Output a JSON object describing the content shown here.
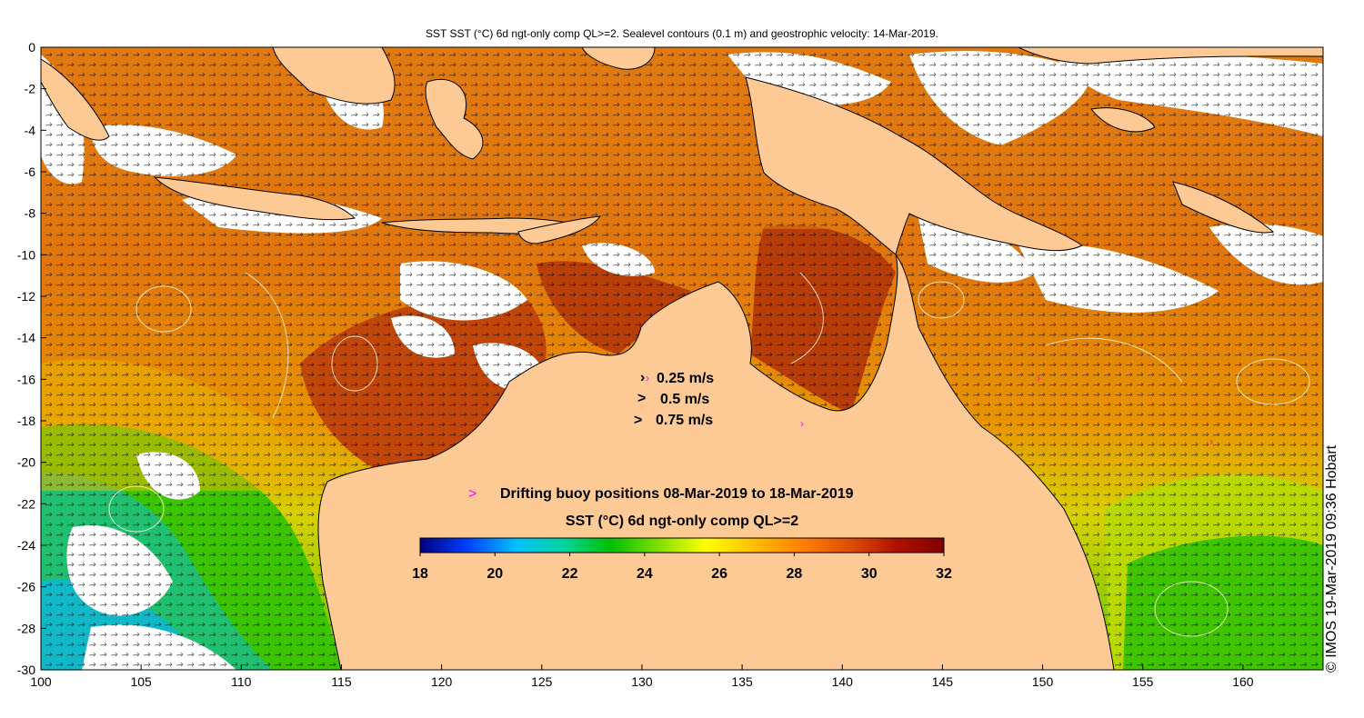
{
  "title": "SST SST (°C) 6d ngt-only comp QL>=2. Sealevel contours (0.1 m) and geostrophic velocity: 14-Mar-2019.",
  "copyright": "© IMOS 19-Mar-2019 09:36 Hobart",
  "axes": {
    "x_ticks": [
      "100",
      "105",
      "110",
      "115",
      "120",
      "125",
      "130",
      "135",
      "140",
      "145",
      "150",
      "155",
      "160"
    ],
    "y_ticks": [
      "0",
      "-2",
      "-4",
      "-6",
      "-8",
      "-10",
      "-12",
      "-14",
      "-16",
      "-18",
      "-20",
      "-22",
      "-24",
      "-26",
      "-28",
      "-30"
    ],
    "x_range": [
      100,
      164
    ],
    "y_range": [
      -30,
      0
    ]
  },
  "velocity_legend": [
    {
      "label": "0.25 m/s",
      "glyph": "›"
    },
    {
      "label": "0.5 m/s",
      "glyph": ">"
    },
    {
      "label": "0.75 m/s",
      "glyph": ">"
    }
  ],
  "buoy_legend": {
    "glyph": ">",
    "label": "Drifting buoy positions 08-Mar-2019 to 18-Mar-2019",
    "color": "#ff00ff"
  },
  "colorbar": {
    "title": "SST (°C) 6d ngt-only comp QL>=2",
    "ticks": [
      "18",
      "20",
      "22",
      "24",
      "26",
      "28",
      "30",
      "32"
    ],
    "min": 18,
    "max": 32,
    "colors": [
      "#00007f",
      "#0040ff",
      "#00bfff",
      "#00d4a0",
      "#00c000",
      "#7fdf00",
      "#ffff00",
      "#ffbf00",
      "#ff8000",
      "#e05000",
      "#b01000",
      "#800000"
    ]
  },
  "colors": {
    "land": "#fdca96",
    "coast": "#000000",
    "warm": "#d9650a",
    "hot": "#b83a08",
    "mid": "#f0a000",
    "cool": "#30c000",
    "cold": "#18c0b0",
    "cloud": "#ffffff"
  }
}
